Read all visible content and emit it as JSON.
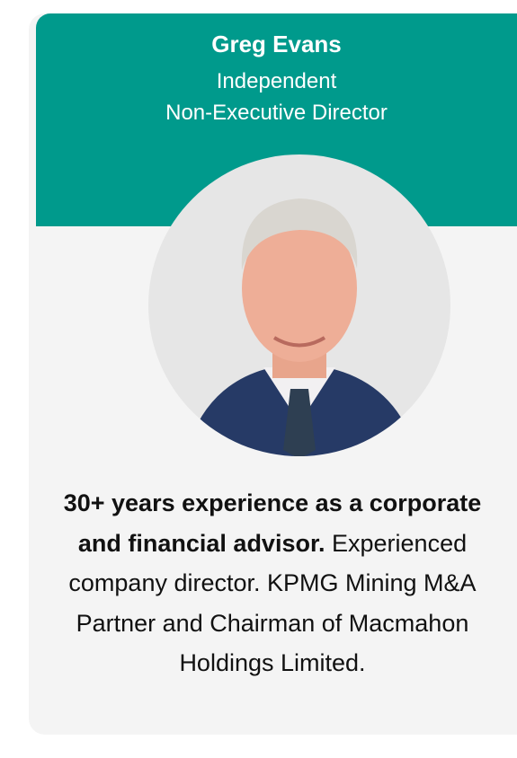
{
  "header": {
    "name": "Greg Evans",
    "role_line1": "Independent",
    "role_line2": "Non-Executive Director"
  },
  "bio": {
    "bold": "30+ years experience as a corporate and financial advisor.",
    "text": "Experienced company director. KPMG Mining M&A Partner and Chairman of Macmahon Holdings Limited."
  }
}
